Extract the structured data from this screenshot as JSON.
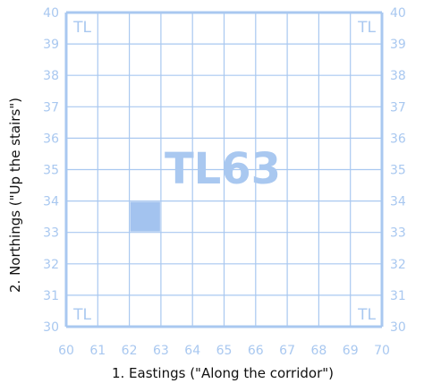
{
  "grid": {
    "square_label": "TL63",
    "corner_label": "TL",
    "eastings_ticks": [
      "60",
      "61",
      "62",
      "63",
      "64",
      "65",
      "66",
      "67",
      "68",
      "69",
      "70"
    ],
    "northings_ticks": [
      "30",
      "31",
      "32",
      "33",
      "34",
      "35",
      "36",
      "37",
      "38",
      "39",
      "40"
    ],
    "highlighted_cell": {
      "easting": 62,
      "northing": 33
    },
    "colors": {
      "grid_line": "#a9c8f0",
      "label": "#a9c8f0",
      "highlight": "#a3c3ef",
      "axis_title": "#111111"
    }
  },
  "axes": {
    "x_title": "1. Eastings (\"Along the corridor\")",
    "y_title": "2. Northings (\"Up the stairs\")"
  }
}
